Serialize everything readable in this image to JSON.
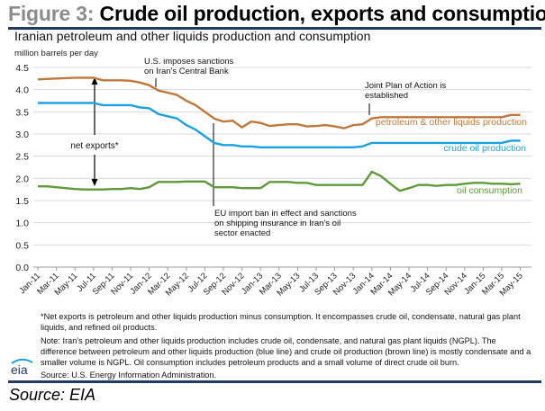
{
  "figure": {
    "number_label": "Figure 3:",
    "title": "Crude oil production, exports and consumption",
    "source_bottom": "Source: EIA",
    "logo_text": "eia"
  },
  "footnotes": {
    "net_exports": "*Net exports is petroleum and other liquids production minus consumption. It encompasses crude oil, condensate, natural gas plant liquids, and refined oil products.",
    "note": "Note: Iran's petroleum and other liquids production includes crude oil, condensate, and natural gas plant liquids (NGPL).  The difference between petroleum and other liquids production (blue line) and crude oil  production (brown line) is mostly condensate and a smaller volume is NGPL. Oil consumption includes petroleum products and a small volume of direct crude oil burn.",
    "source": "Source: U.S. Energy Information Administration."
  },
  "colors": {
    "petroleum": "#c0783a",
    "crude": "#1ba1e2",
    "consumption": "#5e9a3a",
    "rule": "#1f3b63",
    "grid": "#d9d9d9"
  },
  "chart_data": {
    "type": "line",
    "title": "Iranian petroleum and other liquids production and consumption",
    "ylabel": "million barrels per day",
    "ylim": [
      0,
      4.5
    ],
    "yticks": [
      "0.0",
      "0.5",
      "1.0",
      "1.5",
      "2.0",
      "2.5",
      "3.0",
      "3.5",
      "4.0",
      "4.5"
    ],
    "grid": true,
    "x": [
      "Jan-11",
      "Feb-11",
      "Mar-11",
      "Apr-11",
      "May-11",
      "Jun-11",
      "Jul-11",
      "Aug-11",
      "Sep-11",
      "Oct-11",
      "Nov-11",
      "Dec-11",
      "Jan-12",
      "Feb-12",
      "Mar-12",
      "Apr-12",
      "May-12",
      "Jun-12",
      "Jul-12",
      "Aug-12",
      "Sep-12",
      "Oct-12",
      "Nov-12",
      "Dec-12",
      "Jan-13",
      "Feb-13",
      "Mar-13",
      "Apr-13",
      "May-13",
      "Jun-13",
      "Jul-13",
      "Aug-13",
      "Sep-13",
      "Oct-13",
      "Nov-13",
      "Dec-13",
      "Jan-14",
      "Feb-14",
      "Mar-14",
      "Apr-14",
      "May-14",
      "Jun-14",
      "Jul-14",
      "Aug-14",
      "Sep-14",
      "Oct-14",
      "Nov-14",
      "Dec-14",
      "Jan-15",
      "Feb-15",
      "Mar-15",
      "Apr-15",
      "May-15"
    ],
    "xtick_labels": [
      "Jan-11",
      "Mar-11",
      "May-11",
      "Jul-11",
      "Sep-11",
      "Nov-11",
      "Jan-12",
      "Mar-12",
      "May-12",
      "Jul-12",
      "Sep-12",
      "Nov-12",
      "Jan-13",
      "Mar-13",
      "May-13",
      "Jul-13",
      "Sep-13",
      "Nov-13",
      "Jan-14",
      "Mar-14",
      "May-14",
      "Jul-14",
      "Sep-14",
      "Nov-14",
      "Jan-15",
      "Mar-15",
      "May-15"
    ],
    "series": [
      {
        "name": "petroleum  & other liquids production",
        "key": "petroleum",
        "values": [
          4.23,
          4.24,
          4.25,
          4.26,
          4.27,
          4.27,
          4.27,
          4.21,
          4.21,
          4.21,
          4.2,
          4.16,
          4.1,
          3.98,
          3.93,
          3.88,
          3.75,
          3.65,
          3.5,
          3.35,
          3.28,
          3.3,
          3.15,
          3.28,
          3.25,
          3.18,
          3.2,
          3.22,
          3.22,
          3.17,
          3.18,
          3.2,
          3.17,
          3.13,
          3.2,
          3.22,
          3.35,
          3.38,
          3.38,
          3.38,
          3.38,
          3.38,
          3.38,
          3.38,
          3.38,
          3.38,
          3.38,
          3.38,
          3.38,
          3.38,
          3.38,
          3.43,
          3.43
        ]
      },
      {
        "name": "crude oil production",
        "key": "crude",
        "values": [
          3.7,
          3.7,
          3.7,
          3.7,
          3.7,
          3.7,
          3.7,
          3.65,
          3.65,
          3.65,
          3.65,
          3.6,
          3.58,
          3.45,
          3.4,
          3.35,
          3.2,
          3.1,
          2.95,
          2.8,
          2.75,
          2.75,
          2.72,
          2.72,
          2.7,
          2.7,
          2.7,
          2.7,
          2.7,
          2.7,
          2.7,
          2.7,
          2.7,
          2.7,
          2.7,
          2.72,
          2.8,
          2.8,
          2.8,
          2.8,
          2.8,
          2.8,
          2.8,
          2.8,
          2.8,
          2.8,
          2.8,
          2.8,
          2.8,
          2.8,
          2.8,
          2.85,
          2.85
        ]
      },
      {
        "name": "oil consumption",
        "key": "consumption",
        "values": [
          1.82,
          1.82,
          1.8,
          1.78,
          1.76,
          1.75,
          1.75,
          1.75,
          1.76,
          1.76,
          1.78,
          1.76,
          1.8,
          1.92,
          1.92,
          1.92,
          1.93,
          1.93,
          1.93,
          1.8,
          1.8,
          1.8,
          1.78,
          1.78,
          1.78,
          1.92,
          1.92,
          1.92,
          1.9,
          1.9,
          1.85,
          1.85,
          1.85,
          1.85,
          1.85,
          1.85,
          2.15,
          2.05,
          1.88,
          1.72,
          1.78,
          1.85,
          1.85,
          1.83,
          1.85,
          1.85,
          1.88,
          1.9,
          1.9,
          1.88,
          1.88,
          1.87,
          1.88
        ]
      }
    ],
    "annotations": {
      "us_sanctions": [
        "U.S. imposes sanctions",
        "on Iran's Central Bank"
      ],
      "joint_plan": [
        "Joint Plan of Action is",
        "established"
      ],
      "eu_ban": [
        "EU import ban in effect and sanctions",
        "on shipping insurance in Iran's oil",
        "sector enacted"
      ],
      "net_exports": "net exports*"
    }
  }
}
